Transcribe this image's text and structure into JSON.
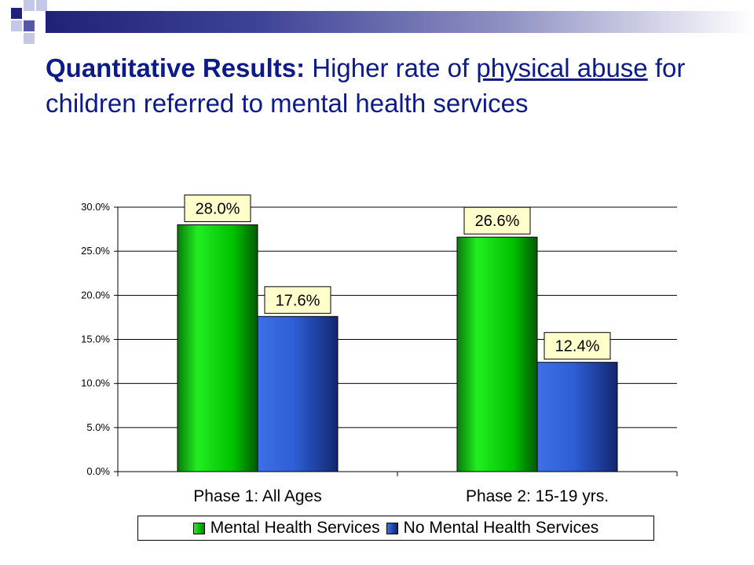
{
  "slide": {
    "title_bold": "Quantitative Results:",
    "title_part1": " Higher rate of ",
    "title_underlined": "physical abuse",
    "title_part2": " for children referred to mental health services"
  },
  "colors": {
    "title": "#0d1a8a",
    "series_green": "#00cc00",
    "series_blue": "#2f5fd8",
    "label_box": "#ffffcc"
  },
  "chart_data": {
    "type": "bar",
    "categories": [
      "Phase 1: All Ages",
      "Phase 2: 15-19 yrs."
    ],
    "series": [
      {
        "name": "Mental Health Services",
        "values": [
          28.0,
          26.6
        ],
        "labels": [
          "28.0%",
          "26.6%"
        ]
      },
      {
        "name": "No Mental Health Services",
        "values": [
          17.6,
          12.4
        ],
        "labels": [
          "17.6%",
          "12.4%"
        ]
      }
    ],
    "yticks": [
      "0.0%",
      "5.0%",
      "10.0%",
      "15.0%",
      "20.0%",
      "25.0%",
      "30.0%"
    ],
    "ylim": [
      0,
      30
    ],
    "grid": true,
    "legend_position": "bottom"
  }
}
